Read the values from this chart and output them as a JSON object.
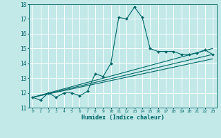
{
  "xlabel": "Humidex (Indice chaleur)",
  "background_color": "#c2e8e8",
  "grid_color": "#ffffff",
  "line_color": "#006666",
  "xlim": [
    -0.5,
    23.5
  ],
  "ylim": [
    11,
    18
  ],
  "xticks": [
    0,
    1,
    2,
    3,
    4,
    5,
    6,
    7,
    8,
    9,
    10,
    11,
    12,
    13,
    14,
    15,
    16,
    17,
    18,
    19,
    20,
    21,
    22,
    23
  ],
  "yticks": [
    11,
    12,
    13,
    14,
    15,
    16,
    17,
    18
  ],
  "series": [
    {
      "x": [
        0,
        1,
        2,
        3,
        4,
        5,
        6,
        7,
        8,
        9,
        10,
        11,
        12,
        13,
        14,
        15,
        16,
        17,
        18,
        19,
        20,
        21,
        22,
        23
      ],
      "y": [
        11.7,
        11.5,
        12.0,
        11.7,
        12.0,
        12.0,
        11.8,
        12.1,
        13.3,
        13.1,
        14.0,
        17.1,
        17.0,
        17.8,
        17.1,
        15.0,
        14.8,
        14.8,
        14.8,
        14.6,
        14.6,
        14.7,
        14.9,
        14.6
      ]
    },
    {
      "x": [
        0,
        23
      ],
      "y": [
        11.7,
        15.0
      ]
    },
    {
      "x": [
        0,
        23
      ],
      "y": [
        11.7,
        14.6
      ]
    },
    {
      "x": [
        0,
        23
      ],
      "y": [
        11.7,
        14.3
      ]
    }
  ]
}
